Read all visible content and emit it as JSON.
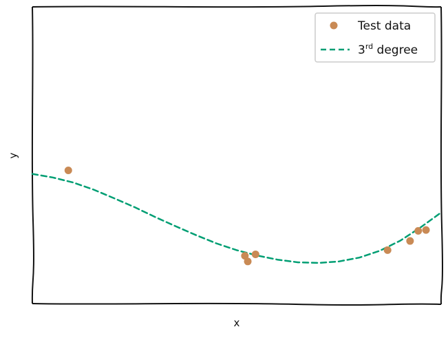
{
  "chart_data": {
    "type": "scatter",
    "title": "",
    "xlabel": "x",
    "ylabel": "y",
    "xlim": [
      0,
      1
    ],
    "ylim": [
      0,
      1
    ],
    "xticks": [],
    "yticks": [],
    "grid": false,
    "legend": {
      "position": "top-right",
      "entries": [
        {
          "label": "Test data",
          "kind": "marker"
        },
        {
          "label_prefix": "3",
          "label_sup": "rd",
          "label_suffix": " degree",
          "kind": "dashed-line"
        }
      ]
    },
    "series": [
      {
        "name": "Test data",
        "kind": "scatter",
        "color": "#c98a55",
        "points": [
          {
            "x": 0.088,
            "y": 0.449
          },
          {
            "x": 0.52,
            "y": 0.161
          },
          {
            "x": 0.527,
            "y": 0.142
          },
          {
            "x": 0.546,
            "y": 0.166
          },
          {
            "x": 0.869,
            "y": 0.18
          },
          {
            "x": 0.924,
            "y": 0.211
          },
          {
            "x": 0.944,
            "y": 0.245
          },
          {
            "x": 0.963,
            "y": 0.248
          }
        ]
      },
      {
        "name": "3rd degree",
        "kind": "line",
        "style": "dashed",
        "color": "#009e73",
        "points": [
          {
            "x": 0.0,
            "y": 0.437
          },
          {
            "x": 0.05,
            "y": 0.425
          },
          {
            "x": 0.1,
            "y": 0.408
          },
          {
            "x": 0.15,
            "y": 0.384
          },
          {
            "x": 0.2,
            "y": 0.355
          },
          {
            "x": 0.25,
            "y": 0.325
          },
          {
            "x": 0.3,
            "y": 0.292
          },
          {
            "x": 0.35,
            "y": 0.261
          },
          {
            "x": 0.4,
            "y": 0.231
          },
          {
            "x": 0.45,
            "y": 0.203
          },
          {
            "x": 0.5,
            "y": 0.18
          },
          {
            "x": 0.55,
            "y": 0.162
          },
          {
            "x": 0.6,
            "y": 0.148
          },
          {
            "x": 0.65,
            "y": 0.139
          },
          {
            "x": 0.7,
            "y": 0.137
          },
          {
            "x": 0.75,
            "y": 0.142
          },
          {
            "x": 0.8,
            "y": 0.155
          },
          {
            "x": 0.85,
            "y": 0.178
          },
          {
            "x": 0.9,
            "y": 0.212
          },
          {
            "x": 0.95,
            "y": 0.257
          },
          {
            "x": 1.0,
            "y": 0.307
          }
        ]
      }
    ]
  }
}
